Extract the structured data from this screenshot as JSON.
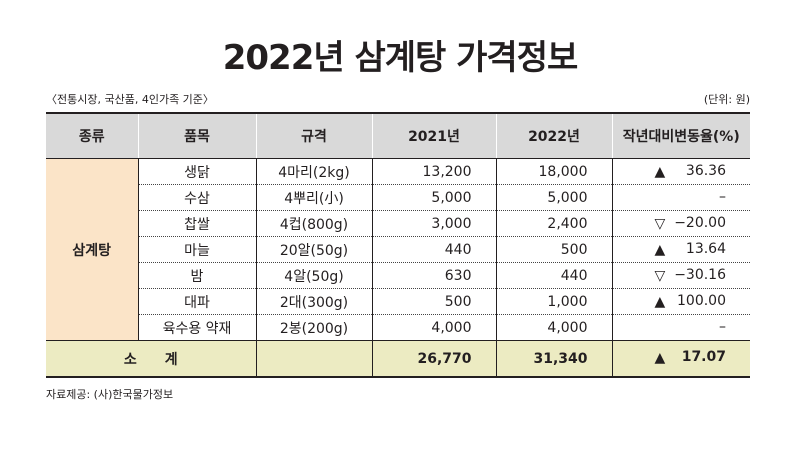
{
  "title": "2022년 삼계탕 가격정보",
  "subnote_left": "〈전통시장, 국산품, 4인가족 기준〉",
  "subnote_right": "(단위: 원)",
  "table": {
    "headers": [
      "종류",
      "품목",
      "규격",
      "2021년",
      "2022년",
      "작년대비변동율(%)"
    ],
    "category": "삼계탕",
    "rows": [
      {
        "item": "생닭",
        "spec": "4마리(2kg)",
        "y2021": "13,200",
        "y2022": "18,000",
        "mark": "▲",
        "change": "36.36"
      },
      {
        "item": "수삼",
        "spec": "4뿌리(小)",
        "y2021": "5,000",
        "y2022": "5,000",
        "mark": "",
        "change": "–"
      },
      {
        "item": "찹쌀",
        "spec": "4컵(800g)",
        "y2021": "3,000",
        "y2022": "2,400",
        "mark": "▽",
        "change": "−20.00"
      },
      {
        "item": "마늘",
        "spec": "20알(50g)",
        "y2021": "440",
        "y2022": "500",
        "mark": "▲",
        "change": "13.64"
      },
      {
        "item": "밤",
        "spec": "4알(50g)",
        "y2021": "630",
        "y2022": "440",
        "mark": "▽",
        "change": "−30.16"
      },
      {
        "item": "대파",
        "spec": "2대(300g)",
        "y2021": "500",
        "y2022": "1,000",
        "mark": "▲",
        "change": "100.00"
      },
      {
        "item": "육수용 약재",
        "spec": "2봉(200g)",
        "y2021": "4,000",
        "y2022": "4,000",
        "mark": "",
        "change": "–"
      }
    ],
    "total": {
      "label": "소계",
      "y2021": "26,770",
      "y2022": "31,340",
      "mark": "▲",
      "change": "17.07"
    }
  },
  "source": "자료제공: (사)한국물가정보"
}
